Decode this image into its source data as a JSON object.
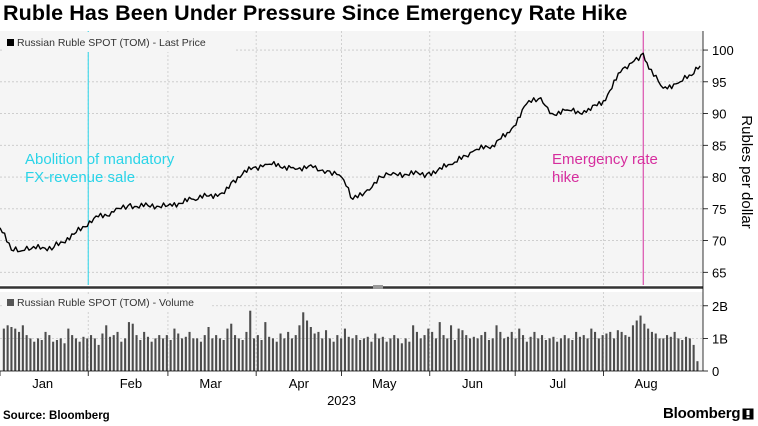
{
  "headline": "Ruble Has Been Under Pressure Since Emergency Rate Hike",
  "source": "Source: Bloomberg",
  "brand": "Bloomberg",
  "colors": {
    "price_line": "#000000",
    "volume_bars": "#4d4d4d",
    "annotation_1": "#2ad4e8",
    "annotation_2": "#d62e9e",
    "grid": "#c8c8c8",
    "divider": "#333333"
  },
  "chart_data": [
    {
      "type": "line",
      "panel": "price",
      "legend": "Russian Ruble SPOT (TOM) - Last Price",
      "ylabel": "Rubles per dollar",
      "ylim": [
        63,
        103
      ],
      "yticks": [
        65,
        70,
        75,
        80,
        85,
        90,
        95,
        100
      ],
      "grid": true,
      "legend_placement": "top-left",
      "x": [
        "2023-01-01",
        "2023-01-05",
        "2023-01-08",
        "2023-01-12",
        "2023-01-20",
        "2023-01-27",
        "2023-02-03",
        "2023-02-10",
        "2023-02-15",
        "2023-02-22",
        "2023-03-01",
        "2023-03-10",
        "2023-03-20",
        "2023-03-24",
        "2023-03-31",
        "2023-04-05",
        "2023-04-14",
        "2023-04-21",
        "2023-04-26",
        "2023-05-01",
        "2023-05-05",
        "2023-05-10",
        "2023-05-15",
        "2023-05-20",
        "2023-05-31",
        "2023-06-09",
        "2023-06-16",
        "2023-06-23",
        "2023-06-29",
        "2023-07-05",
        "2023-07-10",
        "2023-07-14",
        "2023-07-20",
        "2023-07-26",
        "2023-08-01",
        "2023-08-07",
        "2023-08-11",
        "2023-08-15",
        "2023-08-17",
        "2023-08-22",
        "2023-08-28",
        "2023-09-01",
        "2023-09-04"
      ],
      "y": [
        72,
        68.5,
        68.3,
        68.7,
        69,
        71,
        73.5,
        74.5,
        75.5,
        75.5,
        75.5,
        76.5,
        77.5,
        79.5,
        81.5,
        82,
        81.5,
        81.5,
        81,
        80,
        76.5,
        78,
        80,
        80.5,
        80.5,
        82,
        84,
        85,
        87,
        91.5,
        92.5,
        90,
        90.5,
        90.2,
        92,
        96.5,
        98,
        99.5,
        97,
        94,
        95,
        96,
        97.5
      ],
      "annotations": [
        {
          "x": "2023-02-01",
          "text": "Abolition of mandatory FX-revenue sale",
          "lines": [
            "Abolition of mandatory",
            "FX-revenue sale"
          ],
          "color": "#2ad4e8"
        },
        {
          "x": "2023-08-15",
          "text": "Emergency rate hike",
          "lines": [
            "Emergency rate",
            "hike"
          ],
          "color": "#d62e9e"
        }
      ]
    },
    {
      "type": "bar",
      "panel": "volume",
      "legend": "Russian Ruble SPOT (TOM) - Volume",
      "ylim": [
        0,
        2.3
      ],
      "yticks": [
        0,
        1,
        2
      ],
      "ytick_labels": [
        "0",
        "1B",
        "2B"
      ],
      "legend_placement": "top-left",
      "unit": "B",
      "values": [
        1.3,
        1.4,
        1.35,
        1.3,
        1.2,
        1.4,
        1.1,
        1.0,
        0.9,
        1.0,
        0.95,
        1.2,
        1.1,
        0.9,
        0.95,
        1.0,
        0.85,
        1.3,
        1.1,
        1.0,
        0.9,
        1.05,
        1.0,
        1.1,
        1.0,
        0.8,
        1.15,
        1.4,
        1.05,
        1.1,
        1.2,
        0.9,
        1.0,
        1.5,
        1.45,
        1.1,
        0.95,
        1.2,
        1.05,
        0.9,
        1.0,
        1.1,
        1.0,
        1.1,
        0.95,
        1.3,
        1.15,
        1.0,
        1.05,
        1.2,
        1.0,
        1.0,
        0.9,
        1.1,
        1.35,
        1.0,
        1.1,
        1.0,
        0.95,
        1.3,
        1.45,
        1.1,
        1.0,
        0.95,
        1.2,
        1.85,
        1.0,
        1.1,
        0.95,
        1.5,
        1.05,
        1.0,
        0.9,
        1.15,
        1.0,
        1.2,
        1.0,
        1.1,
        1.4,
        1.8,
        1.55,
        1.35,
        1.15,
        1.2,
        1.0,
        1.25,
        1.0,
        0.9,
        1.1,
        1.0,
        1.3,
        1.05,
        1.0,
        1.1,
        0.95,
        1.0,
        1.05,
        0.9,
        1.15,
        1.0,
        1.05,
        0.9,
        1.0,
        1.1,
        1.0,
        0.85,
        1.0,
        0.9,
        1.4,
        1.2,
        1.0,
        1.1,
        1.3,
        1.2,
        1.0,
        1.5,
        1.1,
        1.0,
        1.4,
        0.95,
        1.3,
        1.25,
        1.1,
        1.0,
        1.05,
        1.0,
        1.1,
        1.2,
        0.95,
        1.0,
        1.4,
        1.2,
        1.0,
        1.05,
        1.2,
        1.0,
        1.3,
        1.1,
        0.9,
        1.05,
        1.2,
        1.0,
        1.1,
        0.95,
        1.0,
        1.05,
        0.9,
        1.0,
        1.1,
        1.0,
        0.95,
        1.2,
        1.05,
        1.1,
        1.0,
        1.3,
        1.2,
        1.0,
        1.1,
        1.15,
        1.2,
        1.0,
        1.25,
        1.2,
        1.1,
        1.05,
        1.4,
        1.55,
        1.7,
        1.45,
        1.3,
        1.2,
        1.15,
        1.0,
        1.0,
        1.1,
        1.05,
        1.2,
        1.0,
        0.95,
        1.05,
        1.0,
        0.8,
        0.3
      ]
    }
  ],
  "x_axis": {
    "months": [
      "Jan",
      "Feb",
      "Mar",
      "Apr",
      "May",
      "Jun",
      "Jul",
      "Aug"
    ],
    "year": "2023"
  }
}
